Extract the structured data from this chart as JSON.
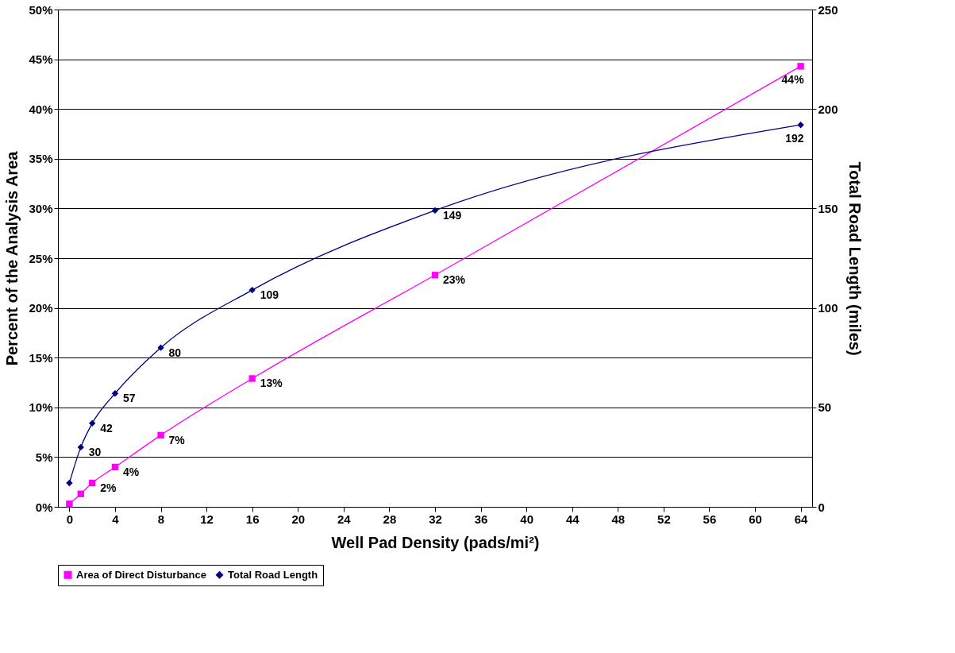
{
  "chart_data": {
    "type": "line",
    "xlabel": "Well Pad Density (pads/mi²)",
    "ylabel": "Percent of the Analysis Area",
    "y2label": "Total Road Length (miles)",
    "x": [
      0,
      1,
      2,
      4,
      8,
      16,
      32,
      64
    ],
    "series": [
      {
        "name": "Area of Direct Disturbance",
        "color": "#ff00ff",
        "marker": "square",
        "axis": "y",
        "values": [
          0.3,
          1.3,
          2.4,
          4.0,
          7.2,
          12.9,
          23.3,
          44.3
        ],
        "value_labels": [
          null,
          null,
          "2%",
          "4%",
          "7%",
          "13%",
          "23%",
          "44%"
        ]
      },
      {
        "name": "Total Road Length",
        "color": "#000080",
        "marker": "diamond",
        "axis": "y2",
        "values": [
          12,
          30,
          42,
          57,
          80,
          109,
          149,
          192
        ],
        "value_labels": [
          null,
          "30",
          "42",
          "57",
          "80",
          "109",
          "149",
          "192"
        ]
      }
    ],
    "xlim": [
      -1,
      65
    ],
    "xticks": [
      0,
      4,
      8,
      12,
      16,
      20,
      24,
      28,
      32,
      36,
      40,
      44,
      48,
      52,
      56,
      60,
      64
    ],
    "ylim": [
      0,
      50
    ],
    "yticks": [
      {
        "value": 0,
        "label": "0%"
      },
      {
        "value": 5,
        "label": "5%"
      },
      {
        "value": 10,
        "label": "10%"
      },
      {
        "value": 15,
        "label": "15%"
      },
      {
        "value": 20,
        "label": "20%"
      },
      {
        "value": 25,
        "label": "25%"
      },
      {
        "value": 30,
        "label": "30%"
      },
      {
        "value": 35,
        "label": "35%"
      },
      {
        "value": 40,
        "label": "40%"
      },
      {
        "value": 45,
        "label": "45%"
      },
      {
        "value": 50,
        "label": "50%"
      }
    ],
    "y2lim": [
      0,
      250
    ],
    "y2ticks": [
      0,
      50,
      100,
      150,
      200,
      250
    ],
    "grid": "y",
    "legend": "bottom",
    "line_style": "solid"
  }
}
